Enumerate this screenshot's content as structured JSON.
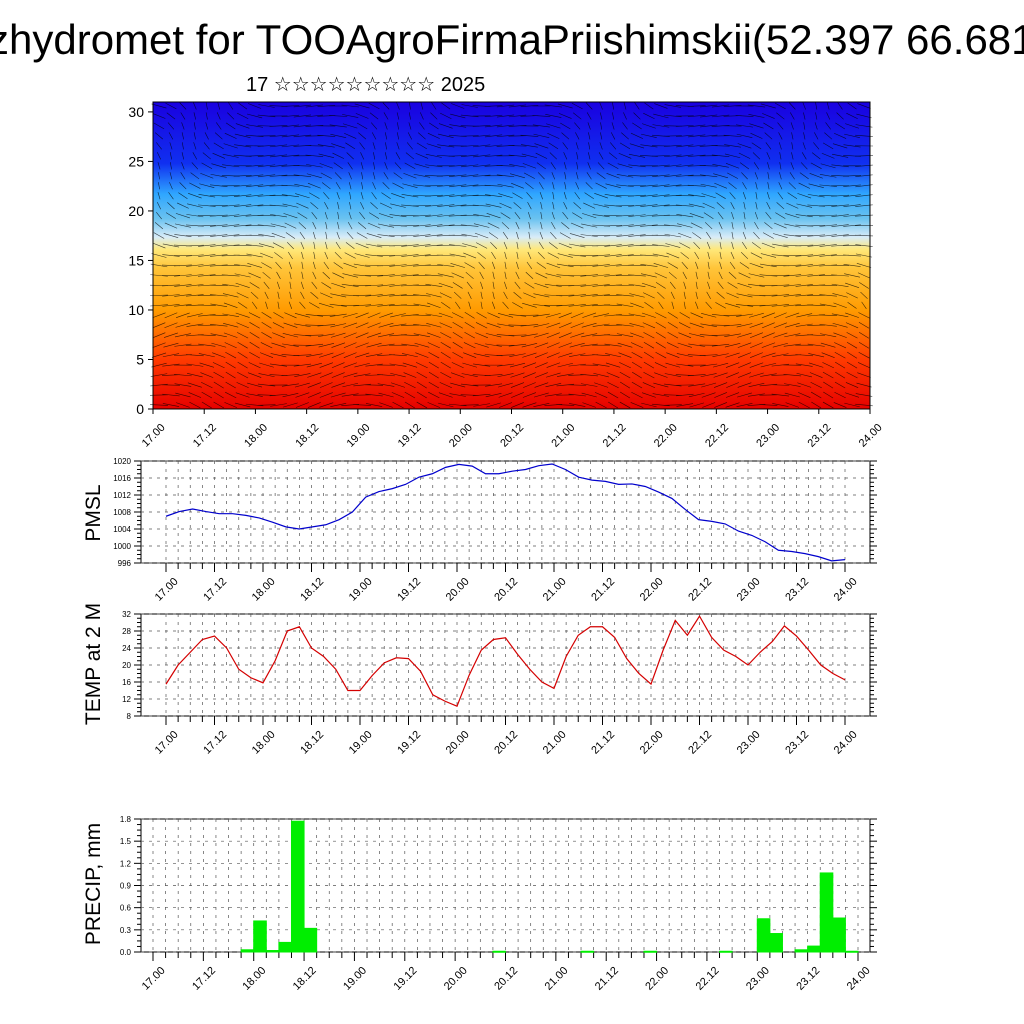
{
  "title": "zhydromet for TOOAgroFirmaPriishimskii(52.397 66.681",
  "subtitle": "17 ☆☆☆☆☆☆☆☆☆ 2025",
  "chart_data": [
    {
      "type": "heatmap",
      "title": "",
      "ylabel": "",
      "ylim": [
        0,
        31
      ],
      "yticks": [
        0,
        5,
        10,
        15,
        20,
        25,
        30
      ],
      "x_ticklabels": [
        "17.00",
        "17.12",
        "18.00",
        "18.12",
        "19.00",
        "19.12",
        "20.00",
        "20.12",
        "21.00",
        "21.12",
        "22.00",
        "22.12",
        "23.00",
        "23.12",
        "24.00"
      ],
      "colors": {
        "low": "#e60000",
        "mid_low": "#ff9a00",
        "mid": "#ffe87a",
        "mid_high": "#2fa6ff",
        "high": "#1a00e0"
      },
      "overlay": "wind barbs"
    },
    {
      "type": "line",
      "ylabel": "PMSL",
      "ylim": [
        996,
        1020
      ],
      "yticks": [
        996,
        1000,
        1004,
        1008,
        1012,
        1016,
        1020
      ],
      "x_ticklabels": [
        "17.00",
        "17.12",
        "18.00",
        "18.12",
        "19.00",
        "19.12",
        "20.00",
        "20.12",
        "21.00",
        "21.12",
        "22.00",
        "22.12",
        "23.00",
        "23.12",
        "24.00"
      ],
      "color": "#0000cc",
      "series": [
        {
          "values": [
            1007.0,
            1008.1,
            1008.7,
            1008.1,
            1007.6,
            1007.6,
            1007.2,
            1006.6,
            1005.6,
            1004.5,
            1004.0,
            1004.5,
            1005.0,
            1006.2,
            1008.0,
            1011.5,
            1012.8,
            1013.5,
            1014.5,
            1016.2,
            1017.0,
            1018.5,
            1019.2,
            1018.8,
            1017.0,
            1017.0,
            1017.6,
            1018.0,
            1018.9,
            1019.3,
            1018.0,
            1016.2,
            1015.5,
            1015.2,
            1014.5,
            1014.6,
            1014.0,
            1012.7,
            1011.2,
            1008.6,
            1006.2,
            1005.8,
            1005.2,
            1003.5,
            1002.5,
            1001.0,
            999.0,
            998.7,
            998.2,
            997.5,
            996.5,
            996.8
          ]
        }
      ]
    },
    {
      "type": "line",
      "ylabel": "TEMP at 2 M",
      "ylim": [
        8,
        32
      ],
      "yticks": [
        8,
        12,
        16,
        20,
        24,
        28,
        32
      ],
      "x_ticklabels": [
        "17.00",
        "17.12",
        "18.00",
        "18.12",
        "19.00",
        "19.12",
        "20.00",
        "20.12",
        "21.00",
        "21.12",
        "22.00",
        "22.12",
        "23.00",
        "23.12",
        "24.00"
      ],
      "color": "#d40000",
      "series": [
        {
          "values": [
            15.5,
            20,
            23,
            26,
            26.8,
            24,
            19,
            17,
            15.8,
            21,
            28,
            29,
            24,
            22,
            19,
            14,
            14,
            17.5,
            20.5,
            21.7,
            21.5,
            18.5,
            13,
            11.5,
            10.3,
            17.6,
            23.5,
            26,
            26.4,
            22.5,
            19,
            16,
            14.5,
            22,
            27,
            29,
            29,
            26.5,
            21.5,
            18,
            15.5,
            23.5,
            30.5,
            27,
            31.5,
            26.5,
            23.5,
            22,
            20,
            23,
            25.5,
            29.2,
            26.8,
            23.5,
            20,
            18,
            16.5
          ]
        }
      ]
    },
    {
      "type": "bar",
      "ylabel": "PRECIP, mm",
      "ylim": [
        0,
        1.8
      ],
      "yticks": [
        "0.0",
        "0.3",
        "0.6",
        "0.9",
        "1.2",
        "1.5",
        "1.8"
      ],
      "x_ticklabels": [
        "17.00",
        "17.12",
        "18.00",
        "18.12",
        "19.00",
        "19.12",
        "20.00",
        "20.12",
        "21.00",
        "21.12",
        "22.00",
        "22.12",
        "23.00",
        "23.12",
        "24.00"
      ],
      "color": "#00ee00",
      "bars": [
        {
          "x": 7,
          "value": 0.03
        },
        {
          "x": 8,
          "value": 0.42
        },
        {
          "x": 9,
          "value": 0.02
        },
        {
          "x": 10,
          "value": 0.13
        },
        {
          "x": 11,
          "value": 1.77
        },
        {
          "x": 12,
          "value": 0.32
        },
        {
          "x": 27,
          "value": 0.01
        },
        {
          "x": 34,
          "value": 0.01
        },
        {
          "x": 39,
          "value": 0.01
        },
        {
          "x": 45,
          "value": 0.01
        },
        {
          "x": 48,
          "value": 0.45
        },
        {
          "x": 49,
          "value": 0.25
        },
        {
          "x": 51,
          "value": 0.03
        },
        {
          "x": 52,
          "value": 0.08
        },
        {
          "x": 53,
          "value": 1.07
        },
        {
          "x": 54,
          "value": 0.46
        },
        {
          "x": 55,
          "value": 0.01
        }
      ]
    }
  ]
}
